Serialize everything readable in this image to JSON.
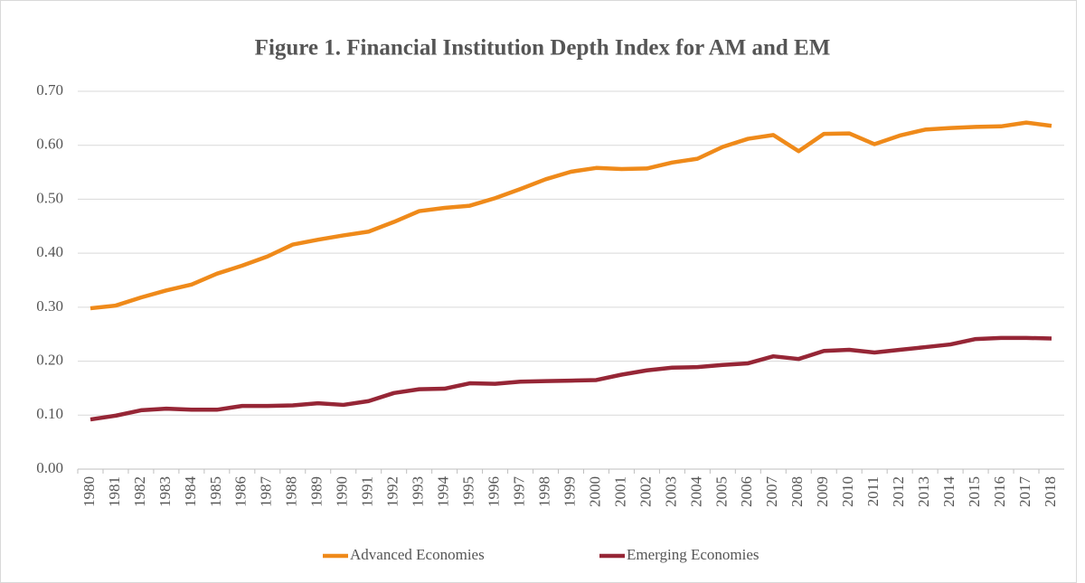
{
  "chart_data": {
    "type": "line",
    "title": "Figure 1. Financial Institution Depth Index for AM and EM",
    "categories": [
      "1980",
      "1981",
      "1982",
      "1983",
      "1984",
      "1985",
      "1986",
      "1987",
      "1988",
      "1989",
      "1990",
      "1991",
      "1992",
      "1993",
      "1994",
      "1995",
      "1996",
      "1997",
      "1998",
      "1999",
      "2000",
      "2001",
      "2002",
      "2003",
      "2004",
      "2005",
      "2006",
      "2007",
      "2008",
      "2009",
      "2010",
      "2011",
      "2012",
      "2013",
      "2014",
      "2015",
      "2016",
      "2017",
      "2018"
    ],
    "series": [
      {
        "name": "Advanced Economies",
        "color": "#ef8a1a",
        "values": [
          0.298,
          0.303,
          0.318,
          0.331,
          0.342,
          0.362,
          0.377,
          0.394,
          0.416,
          0.425,
          0.433,
          0.44,
          0.458,
          0.478,
          0.484,
          0.488,
          0.502,
          0.519,
          0.537,
          0.551,
          0.558,
          0.556,
          0.557,
          0.568,
          0.575,
          0.597,
          0.612,
          0.619,
          0.589,
          0.621,
          0.622,
          0.602,
          0.618,
          0.629,
          0.632,
          0.634,
          0.635,
          0.642,
          0.636
        ]
      },
      {
        "name": "Emerging Economies",
        "color": "#962636",
        "values": [
          0.092,
          0.099,
          0.109,
          0.112,
          0.11,
          0.11,
          0.117,
          0.117,
          0.118,
          0.122,
          0.119,
          0.126,
          0.141,
          0.148,
          0.149,
          0.159,
          0.158,
          0.162,
          0.163,
          0.164,
          0.165,
          0.175,
          0.183,
          0.188,
          0.189,
          0.193,
          0.196,
          0.209,
          0.204,
          0.219,
          0.221,
          0.216,
          0.221,
          0.226,
          0.231,
          0.241,
          0.243,
          0.243,
          0.242
        ]
      }
    ],
    "ylim": [
      0,
      0.7
    ],
    "yticks": [
      {
        "value": 0,
        "label": "0.00"
      },
      {
        "value": 0.1,
        "label": "0.10"
      },
      {
        "value": 0.2,
        "label": "0.20"
      },
      {
        "value": 0.3,
        "label": "0.30"
      },
      {
        "value": 0.4,
        "label": "0.40"
      },
      {
        "value": 0.5,
        "label": "0.50"
      },
      {
        "value": 0.6,
        "label": "0.60"
      },
      {
        "value": 0.7,
        "label": "0.70"
      }
    ],
    "grid": true,
    "legend": "bottom"
  }
}
